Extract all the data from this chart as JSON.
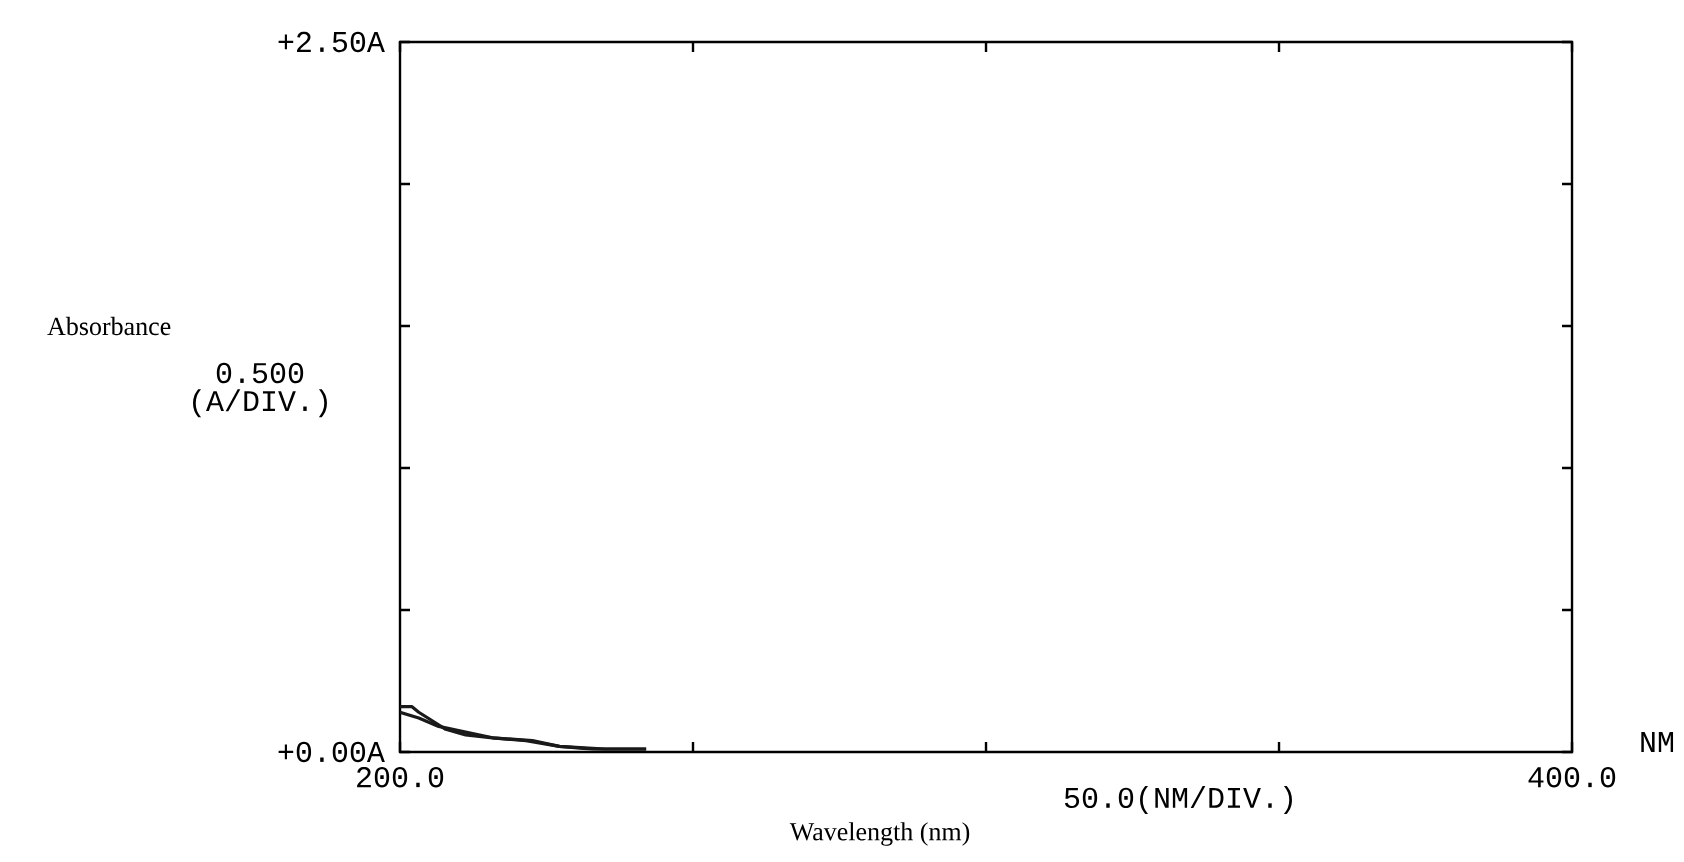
{
  "chart_data": {
    "type": "line",
    "xlabel": "Wavelength (nm)",
    "ylabel": "Absorbance",
    "annotations": [
      "0.500 (A/DIV.)",
      "50.0(NM/DIV.)",
      "NM"
    ],
    "xlim": [
      200,
      400
    ],
    "ylim": [
      0,
      2.5
    ],
    "xticks": [
      {
        "value": 200,
        "label": "200.0"
      },
      {
        "value": 250,
        "label": null
      },
      {
        "value": 300,
        "label": null
      },
      {
        "value": 350,
        "label": null
      },
      {
        "value": 400,
        "label": "400.0"
      }
    ],
    "yticks": [
      {
        "value": 0,
        "label": "+0.00A"
      },
      {
        "value": 0.5,
        "label": null
      },
      {
        "value": 1.0,
        "label": null
      },
      {
        "value": 1.5,
        "label": null
      },
      {
        "value": 2.0,
        "label": null
      },
      {
        "value": 2.5,
        "label": "+2.50A"
      }
    ],
    "grid": false,
    "marker": "none",
    "line_style": "solid",
    "series": [
      {
        "color": "#1a1a1a",
        "x": [
          200,
          202,
          203.2,
          205.5,
          207.8,
          211.2,
          215.8,
          221.5,
          227.2,
          232.9,
          242
        ],
        "values": [
          0.16,
          0.16,
          0.14,
          0.11,
          0.08,
          0.06,
          0.05,
          0.04,
          0.02,
          0.01,
          0.01
        ]
      },
      {
        "color": "#1a1a1a",
        "x": [
          200,
          203.2,
          206.6,
          211.2,
          215.8,
          222.6,
          227.2,
          235,
          242
        ],
        "values": [
          0.14,
          0.12,
          0.09,
          0.07,
          0.05,
          0.04,
          0.02,
          0.01,
          0.01
        ]
      }
    ]
  }
}
